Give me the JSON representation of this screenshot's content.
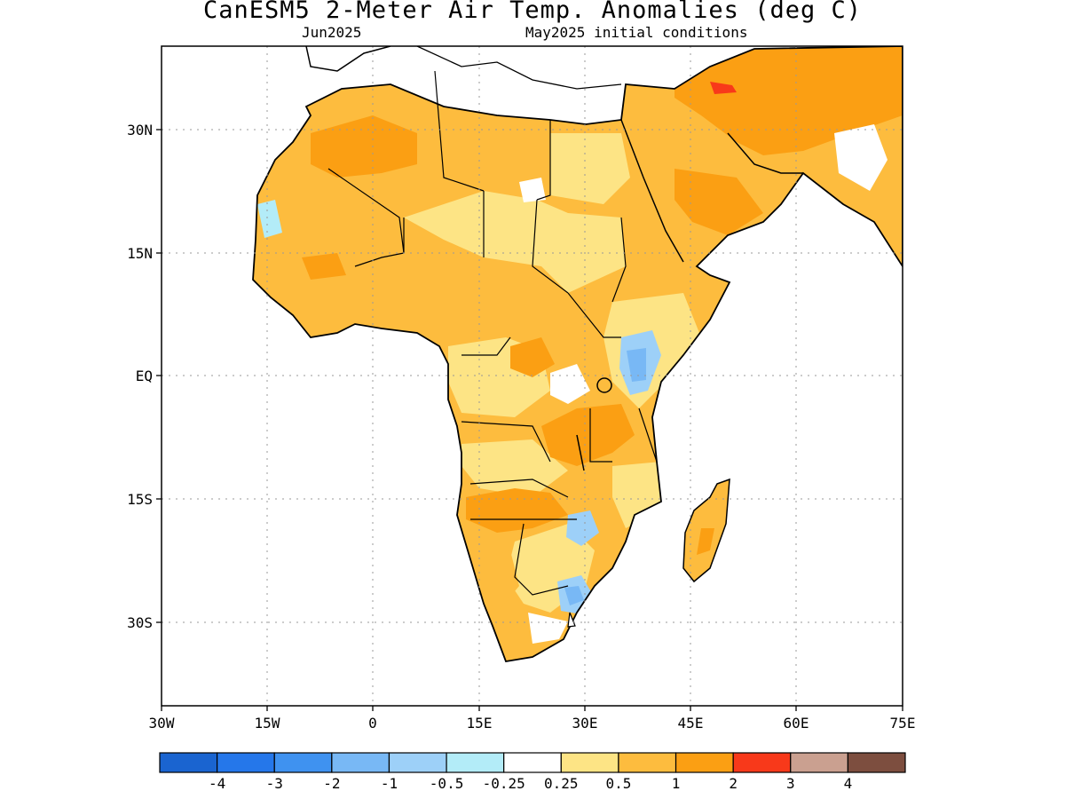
{
  "title": "CanESM5 2-Meter Air Temp. Anomalies (deg C)",
  "subtitle_left": "Jun2025",
  "subtitle_right": "May2025 initial conditions",
  "lat_labels": [
    "30N",
    "15N",
    "EQ",
    "15S",
    "30S"
  ],
  "lon_labels": [
    "30W",
    "15W",
    "0",
    "15E",
    "30E",
    "45E",
    "60E",
    "75E"
  ],
  "colorbar": {
    "colors": [
      "#1a64d0",
      "#2577ea",
      "#3f92f0",
      "#78b8f5",
      "#9dd0f8",
      "#b3ecf8",
      "#ffffff",
      "#fde485",
      "#fdbc3e",
      "#fb9f13",
      "#f8391a",
      "#caa090",
      "#7d4e3f"
    ],
    "labels": [
      "-4",
      "-3",
      "-2",
      "-1",
      "-0.5",
      "-0.25",
      "0.25",
      "0.5",
      "1",
      "2",
      "3",
      "4"
    ]
  },
  "colors": {
    "land_warm": "#fdbc3e",
    "land_light": "#fde485",
    "land_strong": "#fb9f13",
    "cool": "#9dd0f8",
    "cool_strong": "#78b8f5",
    "hot": "#f8391a"
  }
}
